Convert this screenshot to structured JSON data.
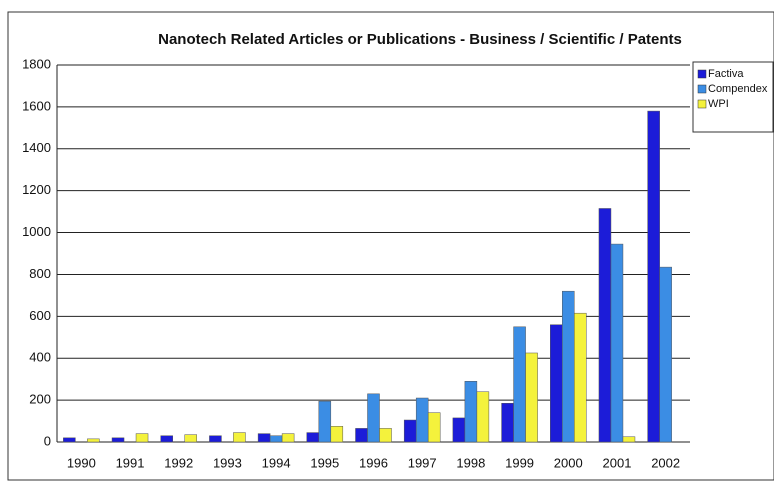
{
  "chart_data": {
    "type": "bar",
    "title": "Nanotech Related Articles or Publications - Business / Scientific / Patents",
    "categories": [
      "1990",
      "1991",
      "1992",
      "1993",
      "1994",
      "1995",
      "1996",
      "1997",
      "1998",
      "1999",
      "2000",
      "2001",
      "2002"
    ],
    "series": [
      {
        "name": "Factiva",
        "color": "#1c1cd8",
        "values": [
          20,
          20,
          30,
          30,
          40,
          45,
          65,
          105,
          115,
          185,
          560,
          1115,
          1580
        ]
      },
      {
        "name": "Compendex",
        "color": "#3b8de4",
        "values": [
          0,
          0,
          0,
          0,
          30,
          195,
          230,
          210,
          290,
          550,
          720,
          945,
          835
        ]
      },
      {
        "name": "WPI",
        "color": "#f4f23c",
        "values": [
          15,
          40,
          35,
          45,
          40,
          75,
          65,
          140,
          240,
          425,
          615,
          25,
          0
        ]
      }
    ],
    "ylim": [
      0,
      1800
    ],
    "yticks": [
      0,
      200,
      400,
      600,
      800,
      1000,
      1200,
      1400,
      1600,
      1800
    ],
    "grid": true,
    "legend": "right"
  }
}
